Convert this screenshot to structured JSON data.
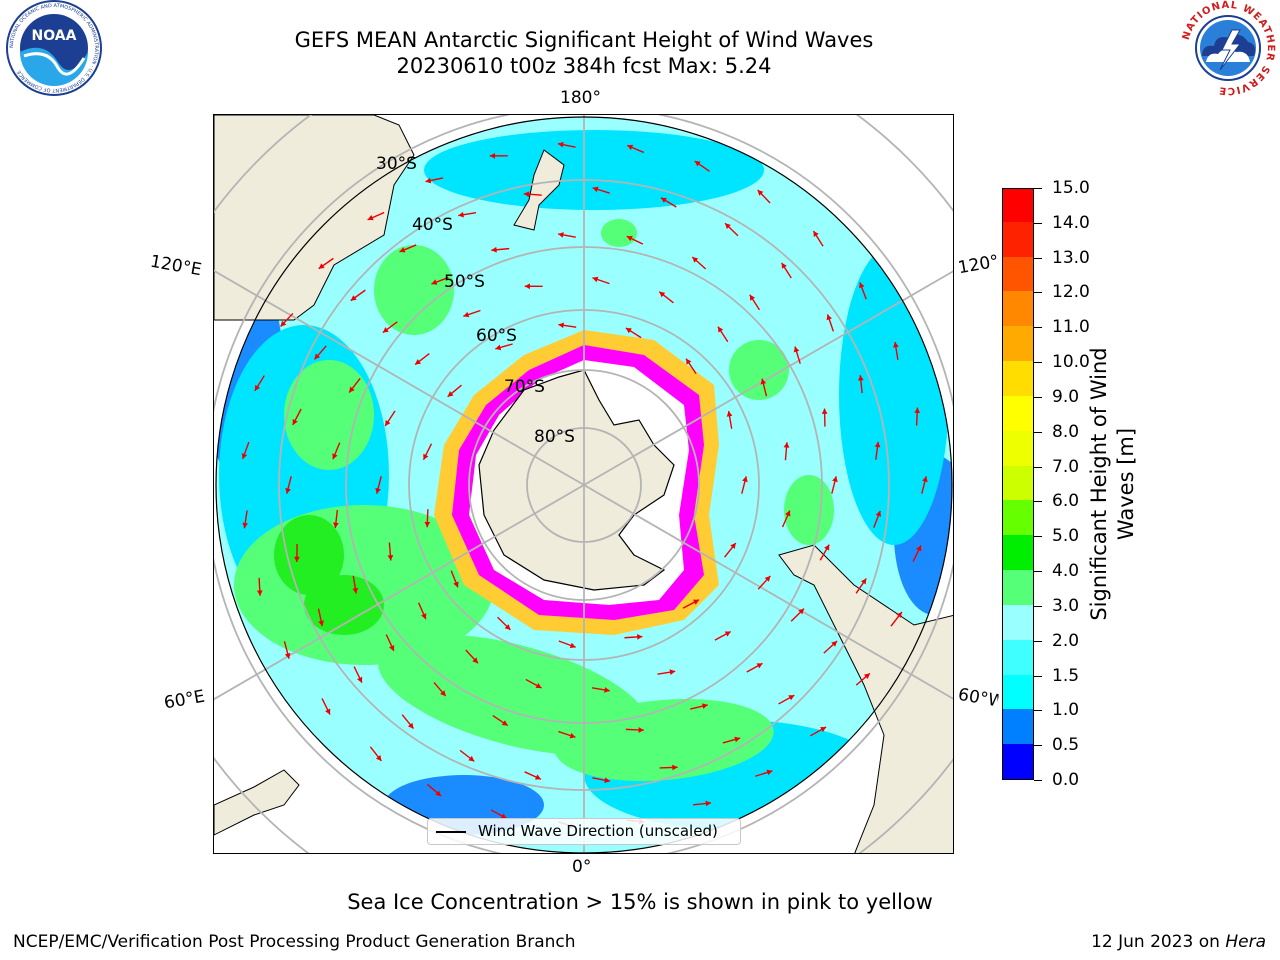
{
  "title": {
    "line1": "GEFS MEAN Antarctic Significant Height of Wind Waves",
    "line2": "20230610 t00z 384h fcst   Max: 5.24"
  },
  "logos": {
    "noaa_text": "NOAA",
    "noaa_ring_text": "NATIONAL OCEANIC AND ATMOSPHERIC ADMINISTRATION · U.S. DEPARTMENT OF COMMERCE",
    "nws_ring_text": "NATIONAL WEATHER SERVICE"
  },
  "map": {
    "projection": "south-polar-stereographic",
    "lon_labels": {
      "top": "180°",
      "bottom": "0°",
      "upper_left": "120°E",
      "upper_right": "120°W",
      "lower_left": "60°E",
      "lower_right": "60°W"
    },
    "lat_labels": [
      "30°S",
      "40°S",
      "50°S",
      "60°S",
      "70°S",
      "80°S"
    ],
    "legend_label": "Wind Wave Direction (unscaled)",
    "land_color": "#efecdc",
    "ice_colors": [
      "#ff00ff",
      "#ff66cc",
      "#ffcc33"
    ],
    "arrow_color": "#ee0000",
    "field_colors": {
      "low": "#1a8cff",
      "mid": "#00e5ff",
      "main": "#99ffff",
      "high": "#55ff77",
      "peak": "#22ee22"
    }
  },
  "colorbar": {
    "label": "Significant Height of Wind Waves [m]",
    "label_line1": "Significant Height of Wind",
    "label_line2": "Waves [m]",
    "range": [
      0,
      15
    ],
    "ticks": [
      "0.0",
      "0.5",
      "1.0",
      "1.5",
      "2.0",
      "3.0",
      "4.0",
      "5.0",
      "6.0",
      "7.0",
      "8.0",
      "9.0",
      "10.0",
      "11.0",
      "12.0",
      "13.0",
      "14.0",
      "15.0"
    ],
    "colors": [
      "#0000ff",
      "#0080ff",
      "#00ffff",
      "#40ffff",
      "#99ffff",
      "#55ff77",
      "#00ee00",
      "#66ff00",
      "#ccff00",
      "#eeff00",
      "#ffff00",
      "#ffdd00",
      "#ffaa00",
      "#ff8800",
      "#ff5500",
      "#ff2200",
      "#ff0000"
    ]
  },
  "seaice_note": "Sea Ice Concentration > 15% is shown in pink to yellow",
  "footer": {
    "left": "NCEP/EMC/Verification Post Processing Product Generation Branch",
    "date": "12 Jun 2023 on ",
    "host": "Hera"
  }
}
